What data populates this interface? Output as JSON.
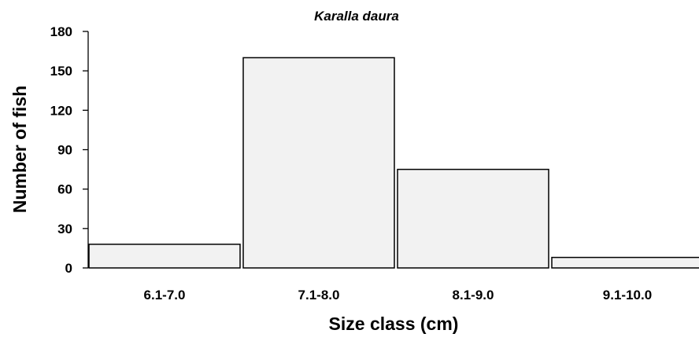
{
  "chart_data": {
    "type": "bar",
    "title": "Karalla daura",
    "xlabel": "Size class (cm)",
    "ylabel": "Number of fish",
    "categories": [
      "6.1-7.0",
      "7.1-8.0",
      "8.1-9.0",
      "9.1-10.0"
    ],
    "values": [
      18,
      160,
      75,
      8
    ],
    "ylim": [
      0,
      180
    ],
    "yticks": [
      "0",
      "30",
      "60",
      "90",
      "120",
      "150",
      "180"
    ],
    "grid": false,
    "legend": "none",
    "bar_color": "#f2f2f2",
    "bar_edge_color": "#000000"
  }
}
